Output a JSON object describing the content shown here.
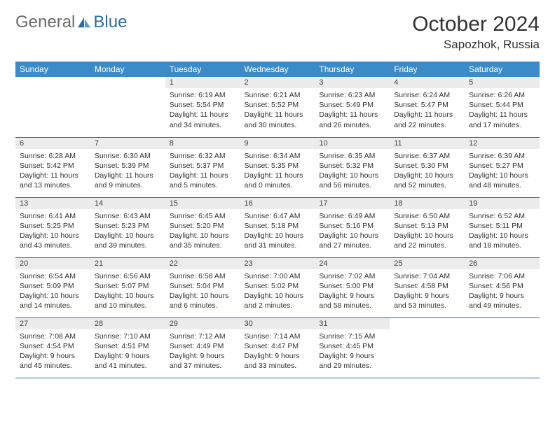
{
  "logo": {
    "text1": "General",
    "text2": "Blue"
  },
  "title": "October 2024",
  "location": "Sapozhok, Russia",
  "colors": {
    "header_bg": "#3b8bc9",
    "header_text": "#ffffff",
    "daynum_bg": "#ececec",
    "border": "#2d6ca2",
    "body_text": "#333333"
  },
  "weekdays": [
    "Sunday",
    "Monday",
    "Tuesday",
    "Wednesday",
    "Thursday",
    "Friday",
    "Saturday"
  ],
  "weeks": [
    [
      null,
      null,
      {
        "n": "1",
        "sr": "6:19 AM",
        "ss": "5:54 PM",
        "dl": "11 hours and 34 minutes."
      },
      {
        "n": "2",
        "sr": "6:21 AM",
        "ss": "5:52 PM",
        "dl": "11 hours and 30 minutes."
      },
      {
        "n": "3",
        "sr": "6:23 AM",
        "ss": "5:49 PM",
        "dl": "11 hours and 26 minutes."
      },
      {
        "n": "4",
        "sr": "6:24 AM",
        "ss": "5:47 PM",
        "dl": "11 hours and 22 minutes."
      },
      {
        "n": "5",
        "sr": "6:26 AM",
        "ss": "5:44 PM",
        "dl": "11 hours and 17 minutes."
      }
    ],
    [
      {
        "n": "6",
        "sr": "6:28 AM",
        "ss": "5:42 PM",
        "dl": "11 hours and 13 minutes."
      },
      {
        "n": "7",
        "sr": "6:30 AM",
        "ss": "5:39 PM",
        "dl": "11 hours and 9 minutes."
      },
      {
        "n": "8",
        "sr": "6:32 AM",
        "ss": "5:37 PM",
        "dl": "11 hours and 5 minutes."
      },
      {
        "n": "9",
        "sr": "6:34 AM",
        "ss": "5:35 PM",
        "dl": "11 hours and 0 minutes."
      },
      {
        "n": "10",
        "sr": "6:35 AM",
        "ss": "5:32 PM",
        "dl": "10 hours and 56 minutes."
      },
      {
        "n": "11",
        "sr": "6:37 AM",
        "ss": "5:30 PM",
        "dl": "10 hours and 52 minutes."
      },
      {
        "n": "12",
        "sr": "6:39 AM",
        "ss": "5:27 PM",
        "dl": "10 hours and 48 minutes."
      }
    ],
    [
      {
        "n": "13",
        "sr": "6:41 AM",
        "ss": "5:25 PM",
        "dl": "10 hours and 43 minutes."
      },
      {
        "n": "14",
        "sr": "6:43 AM",
        "ss": "5:23 PM",
        "dl": "10 hours and 39 minutes."
      },
      {
        "n": "15",
        "sr": "6:45 AM",
        "ss": "5:20 PM",
        "dl": "10 hours and 35 minutes."
      },
      {
        "n": "16",
        "sr": "6:47 AM",
        "ss": "5:18 PM",
        "dl": "10 hours and 31 minutes."
      },
      {
        "n": "17",
        "sr": "6:49 AM",
        "ss": "5:16 PM",
        "dl": "10 hours and 27 minutes."
      },
      {
        "n": "18",
        "sr": "6:50 AM",
        "ss": "5:13 PM",
        "dl": "10 hours and 22 minutes."
      },
      {
        "n": "19",
        "sr": "6:52 AM",
        "ss": "5:11 PM",
        "dl": "10 hours and 18 minutes."
      }
    ],
    [
      {
        "n": "20",
        "sr": "6:54 AM",
        "ss": "5:09 PM",
        "dl": "10 hours and 14 minutes."
      },
      {
        "n": "21",
        "sr": "6:56 AM",
        "ss": "5:07 PM",
        "dl": "10 hours and 10 minutes."
      },
      {
        "n": "22",
        "sr": "6:58 AM",
        "ss": "5:04 PM",
        "dl": "10 hours and 6 minutes."
      },
      {
        "n": "23",
        "sr": "7:00 AM",
        "ss": "5:02 PM",
        "dl": "10 hours and 2 minutes."
      },
      {
        "n": "24",
        "sr": "7:02 AM",
        "ss": "5:00 PM",
        "dl": "9 hours and 58 minutes."
      },
      {
        "n": "25",
        "sr": "7:04 AM",
        "ss": "4:58 PM",
        "dl": "9 hours and 53 minutes."
      },
      {
        "n": "26",
        "sr": "7:06 AM",
        "ss": "4:56 PM",
        "dl": "9 hours and 49 minutes."
      }
    ],
    [
      {
        "n": "27",
        "sr": "7:08 AM",
        "ss": "4:54 PM",
        "dl": "9 hours and 45 minutes."
      },
      {
        "n": "28",
        "sr": "7:10 AM",
        "ss": "4:51 PM",
        "dl": "9 hours and 41 minutes."
      },
      {
        "n": "29",
        "sr": "7:12 AM",
        "ss": "4:49 PM",
        "dl": "9 hours and 37 minutes."
      },
      {
        "n": "30",
        "sr": "7:14 AM",
        "ss": "4:47 PM",
        "dl": "9 hours and 33 minutes."
      },
      {
        "n": "31",
        "sr": "7:15 AM",
        "ss": "4:45 PM",
        "dl": "9 hours and 29 minutes."
      },
      null,
      null
    ]
  ],
  "labels": {
    "sunrise": "Sunrise:",
    "sunset": "Sunset:",
    "daylight": "Daylight:"
  }
}
